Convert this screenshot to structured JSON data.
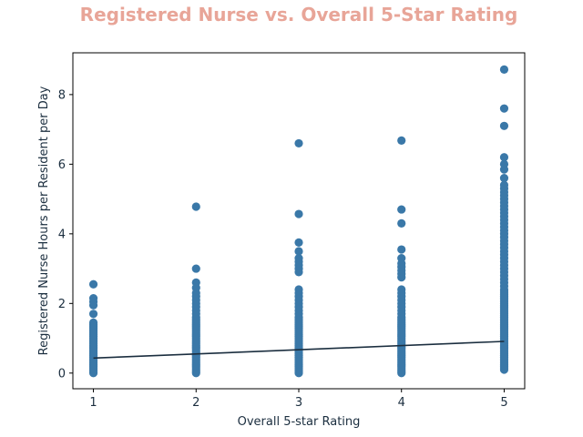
{
  "chart_data": {
    "type": "scatter",
    "title": "Registered Nurse vs. Overall 5-Star Rating",
    "xlabel": "Overall 5-star Rating",
    "ylabel": "Registered Nurse Hours per Resident per Day",
    "xlim": [
      0.8,
      5.2
    ],
    "ylim": [
      -0.45,
      9.2
    ],
    "xticks": [
      1,
      2,
      3,
      4,
      5
    ],
    "yticks": [
      0,
      2,
      4,
      6,
      8
    ],
    "grid": false,
    "points": {
      "1": [
        0,
        0.05,
        0.1,
        0.15,
        0.2,
        0.25,
        0.3,
        0.35,
        0.4,
        0.45,
        0.5,
        0.55,
        0.6,
        0.65,
        0.7,
        0.75,
        0.8,
        0.85,
        0.9,
        0.95,
        1.0,
        1.05,
        1.1,
        1.15,
        1.2,
        1.25,
        1.3,
        1.35,
        1.4,
        1.45,
        1.7,
        1.95,
        2.05,
        2.15,
        2.55
      ],
      "2": [
        0,
        0.05,
        0.1,
        0.15,
        0.2,
        0.25,
        0.3,
        0.35,
        0.4,
        0.45,
        0.5,
        0.55,
        0.6,
        0.65,
        0.7,
        0.75,
        0.8,
        0.85,
        0.9,
        0.95,
        1.0,
        1.05,
        1.1,
        1.15,
        1.2,
        1.25,
        1.3,
        1.35,
        1.4,
        1.45,
        1.5,
        1.55,
        1.6,
        1.7,
        1.8,
        1.9,
        2.0,
        2.1,
        2.2,
        2.3,
        2.45,
        2.6,
        3.0,
        4.78
      ],
      "3": [
        0,
        0.05,
        0.1,
        0.15,
        0.2,
        0.25,
        0.3,
        0.35,
        0.4,
        0.45,
        0.5,
        0.55,
        0.6,
        0.65,
        0.7,
        0.75,
        0.8,
        0.85,
        0.9,
        0.95,
        1.0,
        1.05,
        1.1,
        1.15,
        1.2,
        1.25,
        1.3,
        1.35,
        1.4,
        1.45,
        1.5,
        1.55,
        1.6,
        1.7,
        1.8,
        1.9,
        2.0,
        2.1,
        2.2,
        2.3,
        2.4,
        2.9,
        3.0,
        3.1,
        3.2,
        3.3,
        3.5,
        3.75,
        4.57,
        6.6
      ],
      "4": [
        0,
        0.05,
        0.1,
        0.15,
        0.2,
        0.25,
        0.3,
        0.35,
        0.4,
        0.45,
        0.5,
        0.55,
        0.6,
        0.65,
        0.7,
        0.75,
        0.8,
        0.85,
        0.9,
        0.95,
        1.0,
        1.05,
        1.1,
        1.15,
        1.2,
        1.25,
        1.3,
        1.35,
        1.4,
        1.45,
        1.5,
        1.55,
        1.6,
        1.7,
        1.8,
        1.9,
        2.0,
        2.1,
        2.2,
        2.3,
        2.4,
        2.75,
        2.85,
        2.95,
        3.05,
        3.15,
        3.3,
        3.55,
        4.3,
        4.7,
        6.68
      ],
      "5": [
        0.1,
        0.15,
        0.2,
        0.25,
        0.3,
        0.35,
        0.4,
        0.45,
        0.5,
        0.55,
        0.6,
        0.65,
        0.7,
        0.75,
        0.8,
        0.85,
        0.9,
        0.95,
        1.0,
        1.05,
        1.1,
        1.15,
        1.2,
        1.25,
        1.3,
        1.35,
        1.4,
        1.45,
        1.5,
        1.55,
        1.6,
        1.65,
        1.7,
        1.75,
        1.8,
        1.85,
        1.9,
        1.95,
        2.0,
        2.05,
        2.1,
        2.15,
        2.2,
        2.25,
        2.3,
        2.35,
        2.4,
        2.5,
        2.6,
        2.7,
        2.8,
        2.9,
        3.0,
        3.1,
        3.2,
        3.3,
        3.4,
        3.5,
        3.6,
        3.7,
        3.8,
        3.9,
        4.0,
        4.1,
        4.2,
        4.3,
        4.4,
        4.5,
        4.6,
        4.7,
        4.8,
        4.9,
        5.0,
        5.1,
        5.2,
        5.3,
        5.4,
        5.6,
        5.85,
        6.0,
        6.2,
        7.1,
        7.6,
        8.72
      ]
    },
    "trendline": {
      "x": [
        1,
        5
      ],
      "y": [
        0.43,
        0.91
      ]
    },
    "colors": {
      "title": "#E8A598",
      "points": "#3A78A8",
      "trendline": "#1B2E3F",
      "axis": "#000000",
      "text": "#1B2E3F"
    }
  }
}
